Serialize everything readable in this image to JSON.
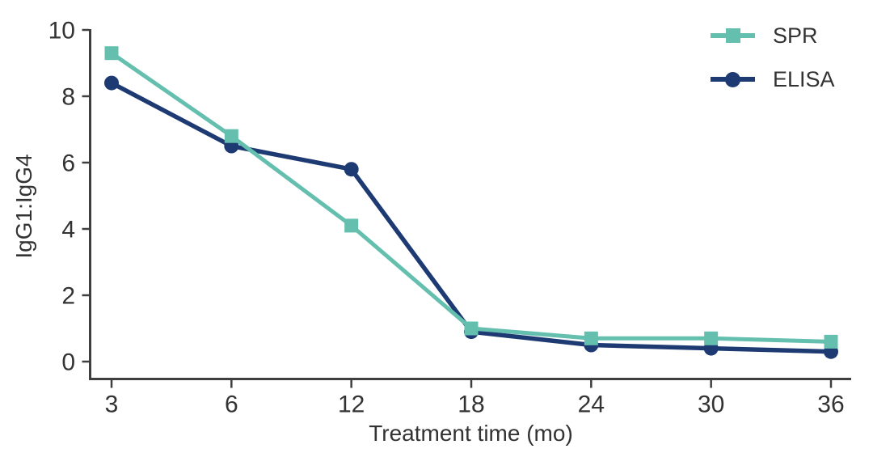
{
  "chart_data": {
    "type": "line",
    "title": "",
    "xlabel": "Treatment time (mo)",
    "ylabel": "IgG1:IgG4",
    "categories": [
      "3",
      "6",
      "12",
      "18",
      "24",
      "30",
      "36"
    ],
    "x_axis_note": "category ticks evenly spaced",
    "yticks": [
      0,
      2,
      4,
      6,
      8,
      10
    ],
    "ylim": [
      0,
      10
    ],
    "grid": false,
    "legend_position": "top-right",
    "series": [
      {
        "name": "SPR",
        "marker": "square",
        "color": "#64bfae",
        "values": [
          9.3,
          6.8,
          4.1,
          1.0,
          0.7,
          0.7,
          0.6
        ]
      },
      {
        "name": "ELISA",
        "marker": "circle",
        "color": "#1e3a73",
        "values": [
          8.4,
          6.5,
          5.8,
          0.9,
          0.5,
          0.4,
          0.3
        ]
      }
    ],
    "colors": {
      "axis": "#3f3f3f",
      "text": "#333333",
      "background": "#ffffff",
      "spr_teal": "#64bfae",
      "elisa_navy": "#1e3a73"
    }
  }
}
